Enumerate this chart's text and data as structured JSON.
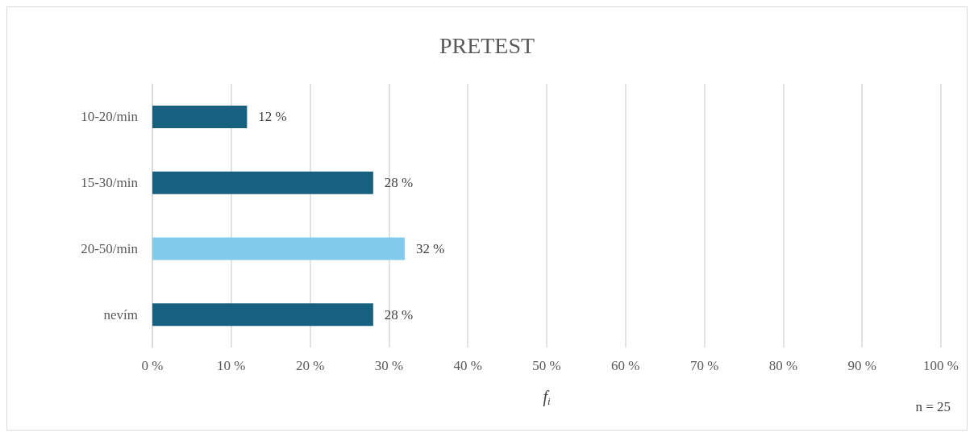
{
  "chart_data": {
    "type": "bar",
    "orientation": "horizontal",
    "title": "PRETEST",
    "xlabel": "f$_{i}$",
    "categories": [
      "10-20/min",
      "15-30/min",
      "20-50/min",
      "nevím"
    ],
    "values": [
      12,
      28,
      32,
      28
    ],
    "colors": [
      "#17607f",
      "#17607f",
      "#83cbeb",
      "#17607f"
    ],
    "value_labels": [
      "12 %",
      "28 %",
      "32 %",
      "28 %"
    ],
    "xlim": [
      0,
      100
    ],
    "xticks": [
      {
        "value": 0,
        "label": "0 %"
      },
      {
        "value": 10,
        "label": "10 %"
      },
      {
        "value": 20,
        "label": "20 %"
      },
      {
        "value": 30,
        "label": "30 %"
      },
      {
        "value": 40,
        "label": "40 %"
      },
      {
        "value": 50,
        "label": "50 %"
      },
      {
        "value": 60,
        "label": "60 %"
      },
      {
        "value": 70,
        "label": "70 %"
      },
      {
        "value": 80,
        "label": "80 %"
      },
      {
        "value": 90,
        "label": "90 %"
      },
      {
        "value": 100,
        "label": "100 %"
      }
    ],
    "grid": "x",
    "annotations": [
      "n = 25"
    ]
  }
}
